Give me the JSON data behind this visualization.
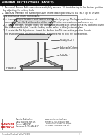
{
  "bg_color": "#ffffff",
  "title_bar_color": "#222222",
  "title_text": "GENERAL INSTRUCTIONS (PAGE 2)",
  "body_lines": [
    "1. Ensure all Pin and Bolt connections are tightly secured. Tilt the table top to the desired position",
    "  by adjusting the locking knob.",
    "2. CAUTION: Maintain the surface pressure on the tabletop below 200 lbs (90.7 kg) to prevent",
    "  risk of personal injury from tipping.",
    "  2.1 Ensure all legs, headers, and casters are installed properly. The legs must intersect at",
    "    connection Point No.1 at the ankle of the table. Position one castor on each cross leg.",
    "  2.2 Ensure the legs, header (Fig 5) are compatible that the bolt connection at the bottom column",
    "    fits the desired height. Turn the locking nut to select a tilt adjustment plane.",
    "  2.3 Locate the Tilt Adjustment, insert the knob at the Tilt connection position. Rotate",
    "    the knob at the tilt adjustment position. Push the knob to lock the table position."
  ],
  "label1": "Tilt Adj. Knob 3",
  "label2": "Adjustable Column",
  "label3": "Table No. 3",
  "figure_label": "Figure 3",
  "footer_left_text": "Sunrise Medical Inc.",
  "footer_addr1": "2842 Business Park Dr.",
  "footer_addr2": "Fresno, CA 93727",
  "footer_phone1": "Toll Free: 1(800) 333-4000 x 5",
  "footer_phone2": "In Canada: 1(800) 268-6438 ext 1",
  "page_right": "Guardian Overbed Table IC-6418",
  "page_num": "2"
}
